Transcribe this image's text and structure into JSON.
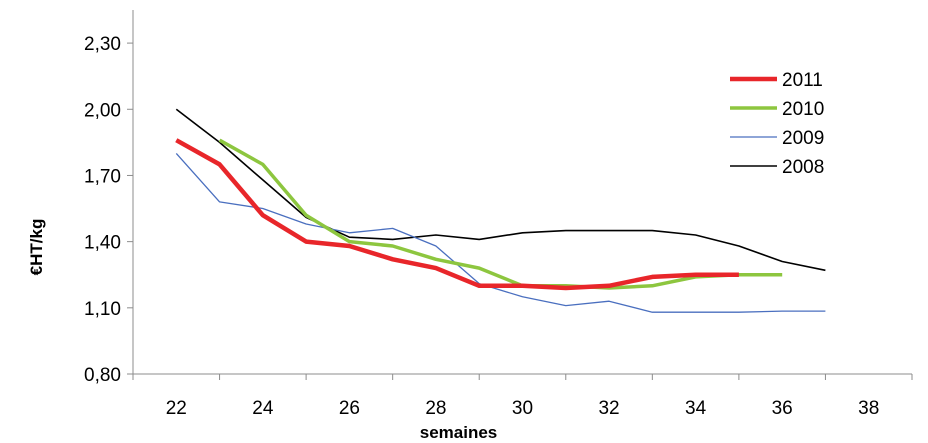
{
  "chart_data": {
    "type": "line",
    "title": "",
    "xlabel": "semaines",
    "ylabel": "€HT/kg",
    "xlim": [
      21,
      39
    ],
    "ylim": [
      0.8,
      2.45
    ],
    "x_ticks": [
      22,
      24,
      26,
      28,
      30,
      32,
      34,
      36,
      38
    ],
    "x_tick_labels": [
      "22",
      "24",
      "26",
      "28",
      "30",
      "32",
      "34",
      "36",
      "38"
    ],
    "y_ticks": [
      0.8,
      1.1,
      1.4,
      1.7,
      2.0,
      2.3
    ],
    "y_tick_labels": [
      "0,80",
      "1,10",
      "1,40",
      "1,70",
      "2,00",
      "2,30"
    ],
    "grid": false,
    "legend_position": "top-right",
    "series": [
      {
        "name": "2011",
        "color": "#e8262a",
        "width": 4.5,
        "x": [
          22,
          23,
          24,
          25,
          26,
          27,
          28,
          29,
          30,
          31,
          32,
          33,
          34,
          35
        ],
        "values": [
          1.86,
          1.75,
          1.52,
          1.4,
          1.38,
          1.32,
          1.28,
          1.2,
          1.2,
          1.19,
          1.2,
          1.24,
          1.25,
          1.25
        ]
      },
      {
        "name": "2010",
        "color": "#8dc63f",
        "width": 3.5,
        "x": [
          23,
          24,
          25,
          26,
          27,
          28,
          29,
          30,
          31,
          32,
          33,
          34,
          35,
          36
        ],
        "values": [
          1.86,
          1.75,
          1.52,
          1.4,
          1.38,
          1.32,
          1.28,
          1.2,
          1.2,
          1.19,
          1.2,
          1.24,
          1.25,
          1.25
        ]
      },
      {
        "name": "2009",
        "color": "#4a6fbf",
        "width": 1.3,
        "x": [
          22,
          23,
          24,
          25,
          26,
          27,
          28,
          29,
          30,
          31,
          32,
          33,
          34,
          35,
          36,
          37
        ],
        "values": [
          1.8,
          1.58,
          1.55,
          1.48,
          1.44,
          1.46,
          1.38,
          1.21,
          1.15,
          1.11,
          1.13,
          1.08,
          1.08,
          1.08,
          1.085,
          1.085
        ]
      },
      {
        "name": "2008",
        "color": "#000000",
        "width": 1.6,
        "x": [
          22,
          23,
          24,
          25,
          26,
          27,
          28,
          29,
          30,
          31,
          32,
          33,
          34,
          35,
          36,
          37
        ],
        "values": [
          2.0,
          1.85,
          1.68,
          1.51,
          1.42,
          1.41,
          1.43,
          1.41,
          1.44,
          1.45,
          1.45,
          1.45,
          1.43,
          1.38,
          1.31,
          1.27
        ]
      }
    ]
  }
}
